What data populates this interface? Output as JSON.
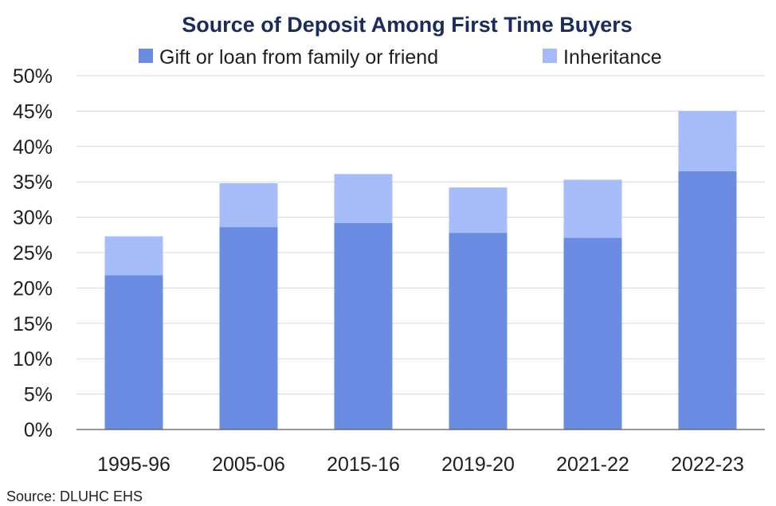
{
  "chart_data": {
    "type": "bar",
    "stacked": true,
    "title": "Source of Deposit Among First Time Buyers",
    "categories": [
      "1995-96",
      "2005-06",
      "2015-16",
      "2019-20",
      "2021-22",
      "2022-23"
    ],
    "series": [
      {
        "name": "Gift or loan from family or friend",
        "values": [
          21.8,
          28.6,
          29.2,
          27.8,
          27.1,
          36.5
        ],
        "color": "#6a8ce3"
      },
      {
        "name": "Inheritance",
        "values": [
          5.5,
          6.2,
          6.9,
          6.4,
          8.2,
          8.5
        ],
        "color": "#a6bcf8"
      }
    ],
    "ylim": [
      0,
      50
    ],
    "yticks": [
      "0%",
      "5%",
      "10%",
      "15%",
      "20%",
      "25%",
      "30%",
      "35%",
      "40%",
      "45%",
      "50%"
    ],
    "grid": true,
    "legend": "top"
  },
  "source": "Source: DLUHC EHS"
}
